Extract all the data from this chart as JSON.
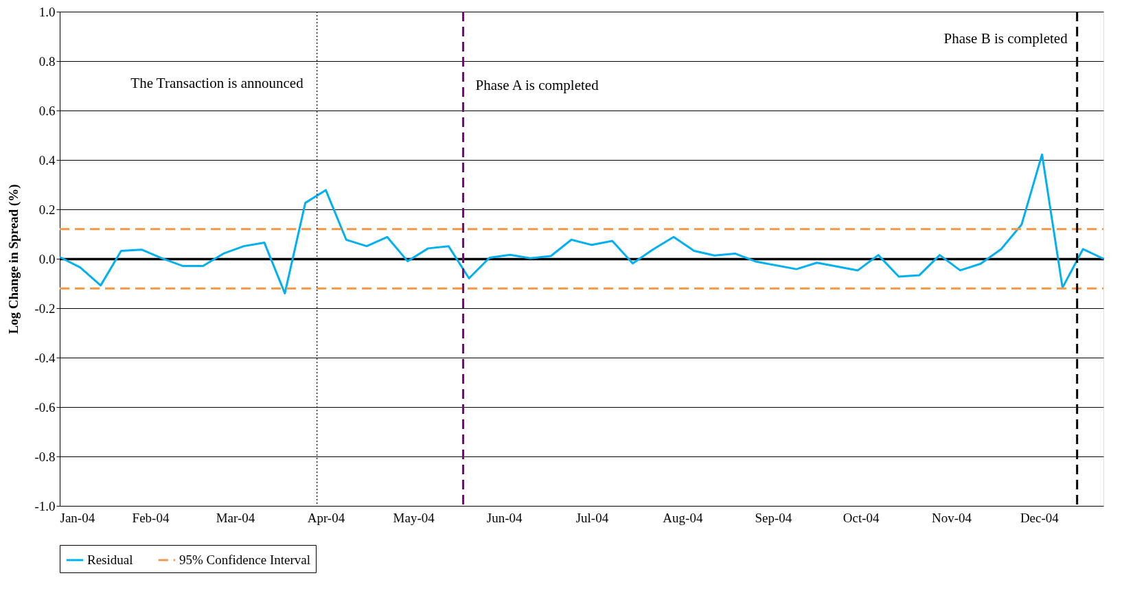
{
  "chart_data": {
    "type": "line",
    "ylabel": "Log Change in Spread (%)",
    "ylim": [
      -1,
      1
    ],
    "yticks": [
      {
        "value": -1,
        "label": "-1.0"
      },
      {
        "value": -0.8,
        "label": "-0.8"
      },
      {
        "value": -0.6,
        "label": "-0.6"
      },
      {
        "value": -0.4,
        "label": "-0.4"
      },
      {
        "value": -0.2,
        "label": "-0.2"
      },
      {
        "value": 0,
        "label": "0.0"
      },
      {
        "value": 0.2,
        "label": "0.2"
      },
      {
        "value": 0.4,
        "label": "0.4"
      },
      {
        "value": 0.6,
        "label": "0.6"
      },
      {
        "value": 0.8,
        "label": "0.8"
      },
      {
        "value": 1,
        "label": "1.0"
      }
    ],
    "xlim": [
      "2004-01-01",
      "2004-12-23"
    ],
    "xticks": [
      {
        "value": "2004-01-01",
        "label": "Jan-04"
      },
      {
        "value": "2004-02-01",
        "label": "Feb-04"
      },
      {
        "value": "2004-03-01",
        "label": "Mar-04"
      },
      {
        "value": "2004-04-01",
        "label": "Apr-04"
      },
      {
        "value": "2004-05-01",
        "label": "May-04"
      },
      {
        "value": "2004-06-01",
        "label": "Jun-04"
      },
      {
        "value": "2004-07-01",
        "label": "Jul-04"
      },
      {
        "value": "2004-08-01",
        "label": "Aug-04"
      },
      {
        "value": "2004-09-01",
        "label": "Sep-04"
      },
      {
        "value": "2004-10-01",
        "label": "Oct-04"
      },
      {
        "value": "2004-11-01",
        "label": "Nov-04"
      },
      {
        "value": "2004-12-01",
        "label": "Dec-04"
      }
    ],
    "grid": "y",
    "legend": "bottom",
    "marker": "none",
    "series": [
      {
        "name": "Residual",
        "color": "#00b0f0",
        "line_style": "solid",
        "x": [
          "2004-01-01",
          "2004-01-08",
          "2004-01-15",
          "2004-01-22",
          "2004-01-29",
          "2004-02-05",
          "2004-02-12",
          "2004-02-19",
          "2004-02-26",
          "2004-03-04",
          "2004-03-11",
          "2004-03-18",
          "2004-03-25",
          "2004-04-01",
          "2004-04-08",
          "2004-04-15",
          "2004-04-22",
          "2004-04-29",
          "2004-05-06",
          "2004-05-13",
          "2004-05-20",
          "2004-05-27",
          "2004-06-03",
          "2004-06-10",
          "2004-06-17",
          "2004-06-24",
          "2004-07-01",
          "2004-07-08",
          "2004-07-15",
          "2004-07-22",
          "2004-07-29",
          "2004-08-05",
          "2004-08-12",
          "2004-08-19",
          "2004-08-26",
          "2004-09-09",
          "2004-09-16",
          "2004-09-30",
          "2004-10-07",
          "2004-10-14",
          "2004-10-21",
          "2004-10-28",
          "2004-11-04",
          "2004-11-11",
          "2004-11-18",
          "2004-11-25",
          "2004-12-02",
          "2004-12-09",
          "2004-12-16",
          "2004-12-23"
        ],
        "values": [
          0.007,
          -0.035,
          -0.108,
          0.032,
          0.037,
          0.002,
          -0.029,
          -0.029,
          0.021,
          0.051,
          0.065,
          -0.14,
          0.226,
          0.278,
          0.077,
          0.051,
          0.088,
          -0.01,
          0.042,
          0.051,
          -0.079,
          0.004,
          0.016,
          0.002,
          0.011,
          0.077,
          0.056,
          0.072,
          -0.019,
          0.038,
          0.088,
          0.032,
          0.013,
          0.021,
          -0.011,
          -0.042,
          -0.016,
          -0.047,
          0.015,
          -0.072,
          -0.067,
          0.015,
          -0.047,
          -0.02,
          0.039,
          0.138,
          0.422,
          -0.117,
          0.039,
          0.0
        ]
      },
      {
        "name": "95% Confidence Interval",
        "color": "#f79646",
        "line_style": "dashed",
        "x": [
          "2004-01-01",
          "2004-12-23"
        ],
        "values": [
          0.12,
          0.12
        ]
      },
      {
        "color": "#f79646",
        "line_style": "dashed",
        "x": [
          "2004-01-01",
          "2004-12-23"
        ],
        "values": [
          -0.12,
          -0.12
        ]
      }
    ],
    "ref_lines": [
      {
        "axis": "x",
        "value": "2004-03-29",
        "label": "The Transaction is announced",
        "color": "#000000",
        "line_style": "dotted"
      },
      {
        "axis": "x",
        "value": "2004-05-18",
        "label": "Phase A is completed",
        "color": "#800080",
        "line_style": "dashed"
      },
      {
        "axis": "x",
        "value": "2004-12-14",
        "label": "Phase B is completed",
        "color": "#000000",
        "line_style": "dashed"
      }
    ]
  }
}
